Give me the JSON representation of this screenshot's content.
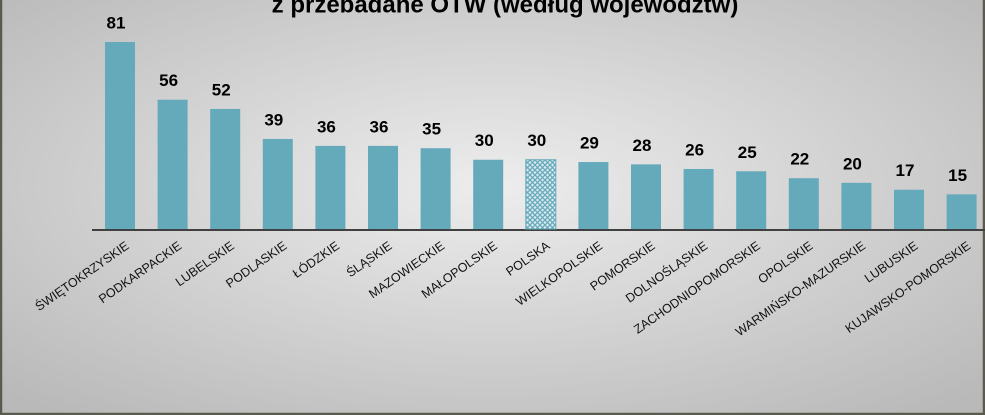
{
  "chart_data": {
    "type": "bar",
    "title": "z przebadane OTW (według województw)",
    "categories": [
      "ŚWIĘTOKRZYSKIE",
      "PODKARPACKIE",
      "LUBELSKIE",
      "PODLASKIE",
      "ŁÓDZKIE",
      "ŚLĄSKIE",
      "MAZOWIECKIE",
      "MAŁOPOLSKIE",
      "POLSKA",
      "WIELKOPOLSKIE",
      "POMORSKIE",
      "DOLNOŚLĄSKIE",
      "ZACHODNIOPOMORSKIE",
      "OPOLSKIE",
      "WARMIŃSKO-MAZURSKIE",
      "LUBUSKIE",
      "KUJAWSKO-POMORSKIE"
    ],
    "values": [
      81,
      56,
      52,
      39,
      36,
      36,
      35,
      30,
      30,
      29,
      28,
      26,
      25,
      22,
      20,
      17,
      15
    ],
    "color": "#65aabb",
    "highlight_category": "POLSKA"
  }
}
